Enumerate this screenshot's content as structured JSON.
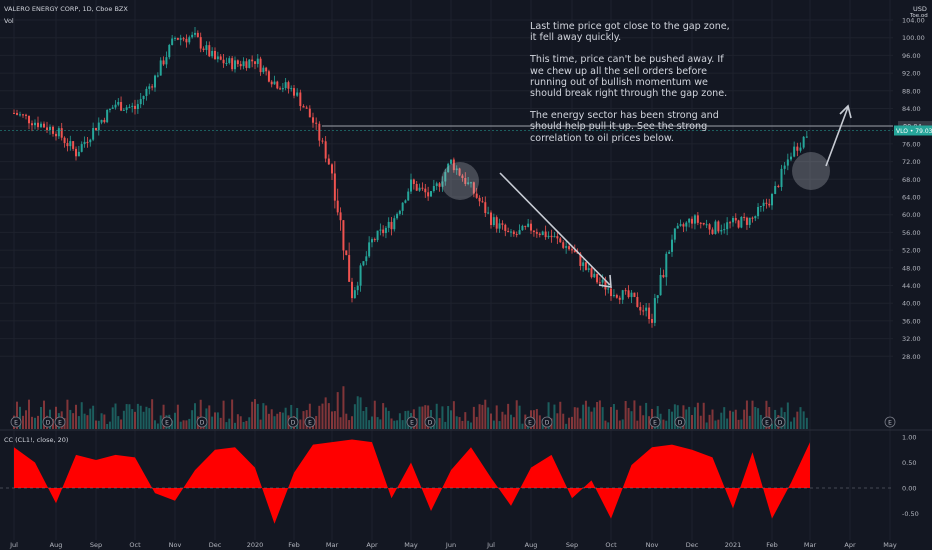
{
  "header": {
    "symbol": "VALERO ENERGY CORP, 1D, Cboe BZX",
    "volume_label": "Vol",
    "currency": "USD",
    "scale_label": "Toe.od"
  },
  "note": {
    "paragraphs": [
      "Last time price got close to the gap zone, it fell away quickly.",
      "This time, price can't be pushed away. If we chew up all the sell orders before running out of bullish momentum we should break right through the gap zone.",
      "The energy sector has been strong and should help pull it up. See the strong correlation to oil prices below."
    ]
  },
  "colors": {
    "background": "#131722",
    "up": "#26a69a",
    "down": "#ef5350",
    "corr_fill": "#ff0000",
    "grid": "#1e222d",
    "axis_text": "#b2b5be",
    "annotation": "#c8ccd4"
  },
  "chart_data": [
    {
      "type": "candlestick",
      "title": "VALERO ENERGY CORP, 1D, Cboe BZX",
      "ylabel": "USD",
      "ylim": [
        26,
        106
      ],
      "y_ticks": [
        104,
        100,
        96,
        92,
        88,
        84,
        80,
        76,
        72,
        68,
        64,
        60,
        56,
        52,
        48,
        44,
        40,
        36,
        32,
        28
      ],
      "x_ticks": [
        "Jul",
        "Aug",
        "Sep",
        "Oct",
        "Nov",
        "Dec",
        "2020",
        "Feb",
        "Mar",
        "Apr",
        "May",
        "Jun",
        "Jul",
        "Aug",
        "Sep",
        "Oct",
        "Nov",
        "Dec",
        "2021",
        "Feb",
        "Mar",
        "Apr",
        "May"
      ],
      "price_path": [
        [
          "Jul",
          83
        ],
        [
          "Jul 15",
          81
        ],
        [
          "Aug",
          79
        ],
        [
          "Aug 15",
          74
        ],
        [
          "Sep",
          80
        ],
        [
          "Sep 15",
          85
        ],
        [
          "Oct",
          84
        ],
        [
          "Oct 15",
          91
        ],
        [
          "Nov",
          100
        ],
        [
          "Nov 15",
          100
        ],
        [
          "Dec",
          95
        ],
        [
          "Dec 15",
          94
        ],
        [
          "2020",
          95
        ],
        [
          "2020 15",
          90
        ],
        [
          "Feb",
          88
        ],
        [
          "Feb 15",
          81
        ],
        [
          "Mar",
          70
        ],
        [
          "Mar 15",
          42
        ],
        [
          "Apr",
          54
        ],
        [
          "Apr 15",
          58
        ],
        [
          "May",
          67
        ],
        [
          "May 15",
          64
        ],
        [
          "Jun",
          72
        ],
        [
          "Jun 15",
          66
        ],
        [
          "Jul",
          59
        ],
        [
          "Jul 15",
          55
        ],
        [
          "Aug",
          57
        ],
        [
          "Aug 15",
          55
        ],
        [
          "Sep",
          52
        ],
        [
          "Sep 15",
          46
        ],
        [
          "Oct",
          43
        ],
        [
          "Oct 15",
          41
        ],
        [
          "Nov",
          37
        ],
        [
          "Nov 15",
          55
        ],
        [
          "Dec",
          59
        ],
        [
          "Dec 15",
          57
        ],
        [
          "2021",
          58
        ],
        [
          "2021 15",
          59
        ],
        [
          "Feb",
          64
        ],
        [
          "Feb 15",
          74
        ],
        [
          "Mar",
          79
        ]
      ],
      "last_price_label": "VLO • 79.03",
      "gap_level_label": "80.04",
      "gap_level": 80.04,
      "last_price": 79.03,
      "annotations": [
        "circle at Jun peak",
        "down arrow from Jun peak toward Oct",
        "circle at Mar 2021 price",
        "up arrow beyond Mar 2021"
      ]
    },
    {
      "type": "area",
      "title": "CC (CL1!, close, 20)",
      "ylim": [
        -1.05,
        1.05
      ],
      "y_ticks": [
        1.0,
        0.5,
        0.0,
        -0.5
      ],
      "y_tick_labels": [
        "1.00",
        "0.50",
        "0.00",
        "-0.50"
      ],
      "x": [
        "Jul",
        "Jul 15",
        "Aug",
        "Aug 15",
        "Sep",
        "Sep 15",
        "Oct",
        "Oct 15",
        "Nov",
        "Nov 15",
        "Dec",
        "Dec 15",
        "2020",
        "2020 15",
        "Feb",
        "Feb 15",
        "Mar",
        "Mar 15",
        "Apr",
        "Apr 15",
        "May",
        "May 15",
        "Jun",
        "Jun 15",
        "Jul",
        "Jul 15",
        "Aug",
        "Aug 15",
        "Sep",
        "Sep 15",
        "Oct",
        "Oct 15",
        "Nov",
        "Nov 15",
        "Dec",
        "Dec 15",
        "2021",
        "2021 15",
        "Feb",
        "Feb 15",
        "Mar"
      ],
      "values": [
        0.8,
        0.5,
        -0.3,
        0.65,
        0.55,
        0.65,
        0.6,
        -0.1,
        -0.25,
        0.35,
        0.75,
        0.8,
        0.4,
        -0.7,
        0.3,
        0.85,
        0.9,
        0.95,
        0.9,
        -0.2,
        0.5,
        -0.45,
        0.35,
        0.8,
        0.2,
        -0.35,
        0.4,
        0.65,
        -0.2,
        0.15,
        -0.6,
        0.45,
        0.8,
        0.85,
        0.75,
        0.6,
        -0.4,
        0.7,
        -0.6,
        0.1,
        0.9
      ]
    }
  ]
}
